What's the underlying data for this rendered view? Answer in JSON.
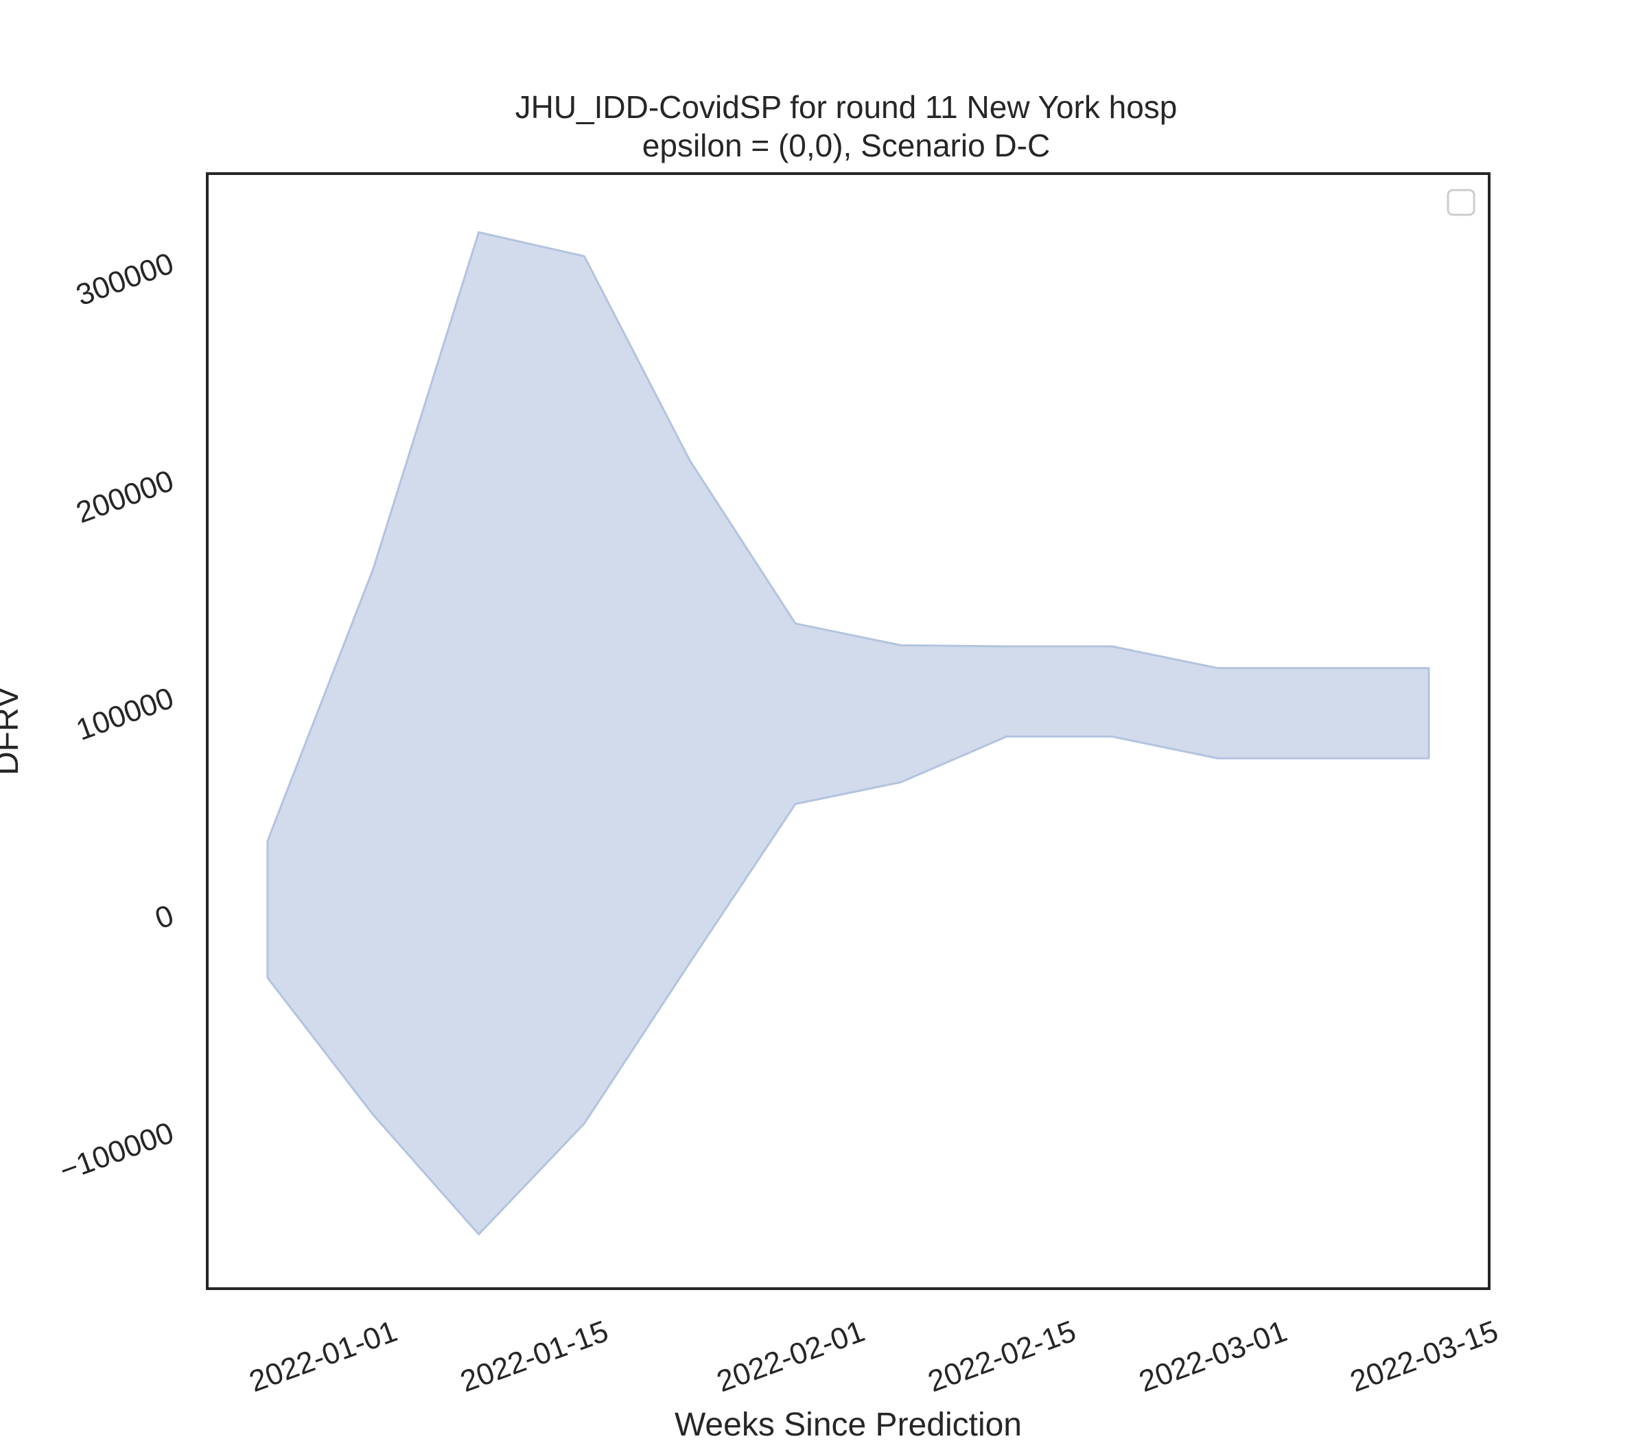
{
  "chart_data": {
    "type": "area",
    "title": "JHU_IDD-CovidSP for round 11 New York hosp",
    "subtitle": "epsilon = (0,0), Scenario D-C",
    "xlabel": "Weeks Since Prediction",
    "ylabel": "DFRV",
    "x": [
      "2021-12-25",
      "2022-01-01",
      "2022-01-08",
      "2022-01-15",
      "2022-01-22",
      "2022-01-29",
      "2022-02-05",
      "2022-02-12",
      "2022-02-19",
      "2022-02-26",
      "2022-03-05",
      "2022-03-12"
    ],
    "series": [
      {
        "upper": [
          33000,
          158000,
          313000,
          302000,
          208000,
          133000,
          123000,
          122500,
          122500,
          112500,
          112500,
          112500
        ],
        "lower": [
          -30000,
          -93000,
          -148000,
          -97000,
          -23000,
          50000,
          60000,
          81000,
          81000,
          71000,
          71000,
          71000
        ]
      }
    ],
    "x_ticks": [
      "2022-01-01",
      "2022-01-15",
      "2022-02-01",
      "2022-02-15",
      "2022-03-01",
      "2022-03-15"
    ],
    "y_ticks": [
      -100000,
      0,
      100000,
      200000,
      300000
    ],
    "y_tick_labels": [
      "−100000",
      "0",
      "100000",
      "200000",
      "300000"
    ],
    "xlim": [
      "2021-12-21",
      "2022-03-16"
    ],
    "ylim": [
      -173000,
      340000
    ],
    "grid": false,
    "legend": "top-right",
    "colors": {
      "fill": "#d1dbec",
      "edge": "#b3c3e0",
      "axes": "#262626",
      "legend_border": "#cccccc"
    }
  }
}
